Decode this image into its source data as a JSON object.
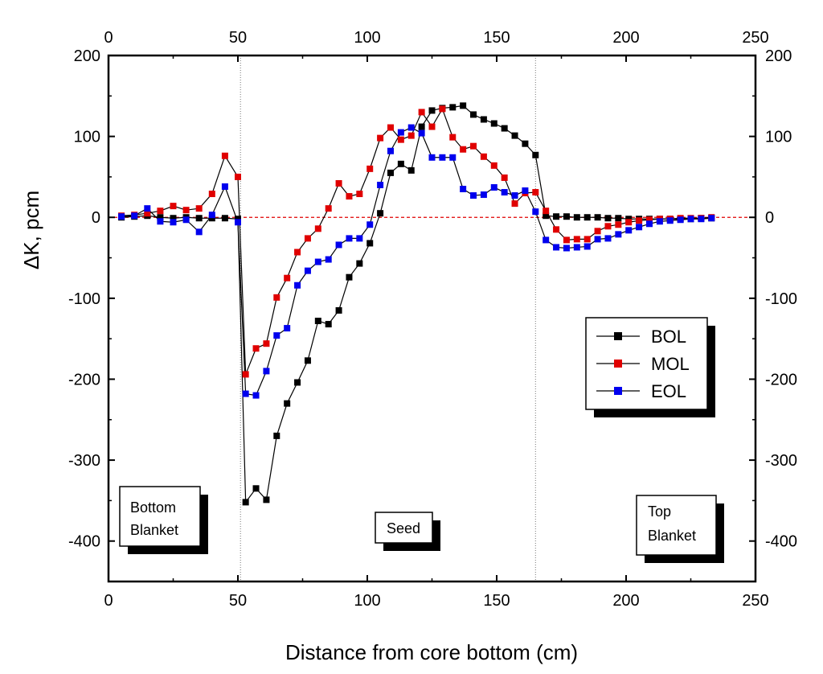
{
  "chart_data": {
    "type": "line",
    "title": "",
    "xlabel": "Distance from core bottom (cm)",
    "ylabel": "ΔK, pcm",
    "xlim": [
      0,
      250
    ],
    "ylim": [
      -450,
      200
    ],
    "xticks": [
      0,
      50,
      100,
      150,
      200,
      250
    ],
    "yticks": [
      200,
      100,
      0,
      -100,
      -200,
      -300,
      -400
    ],
    "zero_line": {
      "y": 0,
      "x_from": 0,
      "x_to": 250,
      "color": "#e00000",
      "style": "dashed"
    },
    "region_dividers": [
      {
        "x": 51
      },
      {
        "x": 165
      }
    ],
    "region_labels": [
      {
        "lines": [
          "Bottom",
          "Blanket"
        ]
      },
      {
        "lines": [
          "Seed"
        ]
      },
      {
        "lines": [
          "Top",
          "Blanket"
        ]
      }
    ],
    "legend": {
      "placement": "right",
      "entries": [
        "BOL",
        "MOL",
        "EOL"
      ]
    },
    "series": [
      {
        "name": "BOL",
        "color": "#000000",
        "points": [
          [
            5,
            0
          ],
          [
            10,
            1
          ],
          [
            15,
            2
          ],
          [
            20,
            0
          ],
          [
            25,
            -1
          ],
          [
            30,
            0
          ],
          [
            35,
            -1
          ],
          [
            40,
            -1
          ],
          [
            45,
            -1
          ],
          [
            50,
            -2
          ],
          [
            53,
            -352
          ],
          [
            57,
            -335
          ],
          [
            61,
            -349
          ],
          [
            65,
            -270
          ],
          [
            69,
            -230
          ],
          [
            73,
            -204
          ],
          [
            77,
            -177
          ],
          [
            81,
            -128
          ],
          [
            85,
            -132
          ],
          [
            89,
            -115
          ],
          [
            93,
            -74
          ],
          [
            97,
            -57
          ],
          [
            101,
            -32
          ],
          [
            105,
            5
          ],
          [
            109,
            55
          ],
          [
            113,
            66
          ],
          [
            117,
            58
          ],
          [
            121,
            112
          ],
          [
            125,
            132
          ],
          [
            129,
            135
          ],
          [
            133,
            136
          ],
          [
            137,
            138
          ],
          [
            141,
            127
          ],
          [
            145,
            121
          ],
          [
            149,
            116
          ],
          [
            153,
            110
          ],
          [
            157,
            101
          ],
          [
            161,
            91
          ],
          [
            165,
            77
          ],
          [
            169,
            2
          ],
          [
            173,
            1
          ],
          [
            177,
            1
          ],
          [
            181,
            0
          ],
          [
            185,
            0
          ],
          [
            189,
            0
          ],
          [
            193,
            -1
          ],
          [
            197,
            -1
          ],
          [
            201,
            -2
          ],
          [
            205,
            -2
          ],
          [
            209,
            -2
          ],
          [
            213,
            -2
          ],
          [
            217,
            -2
          ],
          [
            221,
            -2
          ],
          [
            225,
            -2
          ],
          [
            229,
            -1
          ],
          [
            233,
            -1
          ]
        ]
      },
      {
        "name": "MOL",
        "color": "#e00000",
        "points": [
          [
            5,
            2
          ],
          [
            10,
            3
          ],
          [
            15,
            5
          ],
          [
            20,
            8
          ],
          [
            25,
            14
          ],
          [
            30,
            9
          ],
          [
            35,
            11
          ],
          [
            40,
            29
          ],
          [
            45,
            76
          ],
          [
            50,
            50
          ],
          [
            53,
            -194
          ],
          [
            57,
            -162
          ],
          [
            61,
            -156
          ],
          [
            65,
            -99
          ],
          [
            69,
            -75
          ],
          [
            73,
            -43
          ],
          [
            77,
            -26
          ],
          [
            81,
            -14
          ],
          [
            85,
            11
          ],
          [
            89,
            42
          ],
          [
            93,
            26
          ],
          [
            97,
            29
          ],
          [
            101,
            60
          ],
          [
            105,
            98
          ],
          [
            109,
            111
          ],
          [
            113,
            96
          ],
          [
            117,
            101
          ],
          [
            121,
            130
          ],
          [
            125,
            112
          ],
          [
            129,
            134
          ],
          [
            133,
            99
          ],
          [
            137,
            84
          ],
          [
            141,
            88
          ],
          [
            145,
            75
          ],
          [
            149,
            64
          ],
          [
            153,
            49
          ],
          [
            157,
            17
          ],
          [
            161,
            30
          ],
          [
            165,
            31
          ],
          [
            169,
            8
          ],
          [
            173,
            -15
          ],
          [
            177,
            -28
          ],
          [
            181,
            -27
          ],
          [
            185,
            -27
          ],
          [
            189,
            -17
          ],
          [
            193,
            -11
          ],
          [
            197,
            -9
          ],
          [
            201,
            -6
          ],
          [
            205,
            -4
          ],
          [
            209,
            -3
          ],
          [
            213,
            -2
          ],
          [
            217,
            -2
          ],
          [
            221,
            -1
          ],
          [
            225,
            -1
          ],
          [
            229,
            -1
          ],
          [
            233,
            0
          ]
        ]
      },
      {
        "name": "EOL",
        "color": "#0000ee",
        "points": [
          [
            5,
            1
          ],
          [
            10,
            2
          ],
          [
            15,
            11
          ],
          [
            20,
            -5
          ],
          [
            25,
            -6
          ],
          [
            30,
            -3
          ],
          [
            35,
            -18
          ],
          [
            40,
            3
          ],
          [
            45,
            38
          ],
          [
            50,
            -6
          ],
          [
            53,
            -218
          ],
          [
            57,
            -220
          ],
          [
            61,
            -190
          ],
          [
            65,
            -146
          ],
          [
            69,
            -137
          ],
          [
            73,
            -84
          ],
          [
            77,
            -66
          ],
          [
            81,
            -55
          ],
          [
            85,
            -52
          ],
          [
            89,
            -34
          ],
          [
            93,
            -26
          ],
          [
            97,
            -26
          ],
          [
            101,
            -9
          ],
          [
            105,
            40
          ],
          [
            109,
            82
          ],
          [
            113,
            105
          ],
          [
            117,
            111
          ],
          [
            121,
            104
          ],
          [
            125,
            74
          ],
          [
            129,
            74
          ],
          [
            133,
            74
          ],
          [
            137,
            35
          ],
          [
            141,
            27
          ],
          [
            145,
            28
          ],
          [
            149,
            37
          ],
          [
            153,
            31
          ],
          [
            157,
            27
          ],
          [
            161,
            33
          ],
          [
            165,
            7
          ],
          [
            169,
            -28
          ],
          [
            173,
            -37
          ],
          [
            177,
            -38
          ],
          [
            181,
            -37
          ],
          [
            185,
            -36
          ],
          [
            189,
            -27
          ],
          [
            193,
            -26
          ],
          [
            197,
            -21
          ],
          [
            201,
            -16
          ],
          [
            205,
            -12
          ],
          [
            209,
            -8
          ],
          [
            213,
            -5
          ],
          [
            217,
            -4
          ],
          [
            221,
            -3
          ],
          [
            225,
            -2
          ],
          [
            229,
            -2
          ],
          [
            233,
            -1
          ]
        ]
      }
    ]
  }
}
